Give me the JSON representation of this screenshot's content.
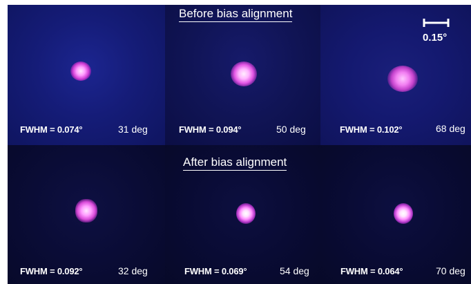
{
  "top_title": "Before bias alignment",
  "bottom_title": "After bias alignment",
  "scale_label": "0.15°",
  "panels": [
    {
      "fwhm": "FWHM = 0.074°",
      "angle": "31 deg"
    },
    {
      "fwhm": "FWHM = 0.094°",
      "angle": "50 deg"
    },
    {
      "fwhm": "FWHM = 0.102°",
      "angle": "68 deg"
    },
    {
      "fwhm": "FWHM = 0.092°",
      "angle": "32 deg"
    },
    {
      "fwhm": "FWHM = 0.069°",
      "angle": "54 deg"
    },
    {
      "fwhm": "FWHM = 0.064°",
      "angle": "70 deg"
    }
  ]
}
